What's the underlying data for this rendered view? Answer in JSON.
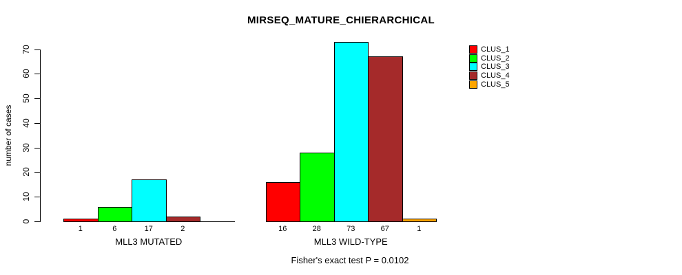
{
  "chart_data": {
    "type": "bar",
    "title": "MIRSEQ_MATURE_CHIERARCHICAL",
    "ylabel": "number of cases",
    "xlabel": "",
    "ylim": [
      0,
      75
    ],
    "yticks": [
      0,
      10,
      20,
      30,
      40,
      50,
      60,
      70
    ],
    "grid": false,
    "legend_position": "right",
    "groups": [
      {
        "label": "MLL3 MUTATED",
        "values": [
          1,
          6,
          17,
          2,
          0
        ],
        "bar_labels": [
          "1",
          "6",
          "17",
          "2",
          ""
        ]
      },
      {
        "label": "MLL3 WILD-TYPE",
        "values": [
          16,
          28,
          73,
          67,
          1
        ],
        "bar_labels": [
          "16",
          "28",
          "73",
          "67",
          "1"
        ]
      }
    ],
    "series": [
      {
        "name": "CLUS_1",
        "color": "#FF0000"
      },
      {
        "name": "CLUS_2",
        "color": "#00FF00"
      },
      {
        "name": "CLUS_3",
        "color": "#00FFFF"
      },
      {
        "name": "CLUS_4",
        "color": "#A52A2A"
      },
      {
        "name": "CLUS_5",
        "color": "#FFA500"
      }
    ],
    "footnote": "Fisher's exact test P = 0.0102"
  }
}
